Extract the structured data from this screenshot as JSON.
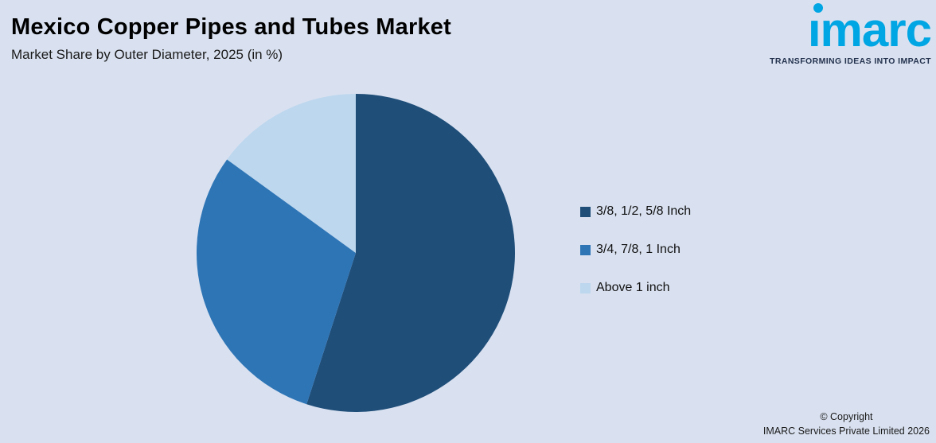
{
  "header": {
    "title": "Mexico Copper Pipes and Tubes Market",
    "subtitle": "Market Share by Outer Diameter, 2025 (in %)"
  },
  "logo": {
    "text": "imarc",
    "tagline": "TRANSFORMING IDEAS INTO IMPACT",
    "brand_color": "#00a5e3"
  },
  "chart_data": {
    "type": "pie",
    "title": "Mexico Copper Pipes and Tubes Market",
    "subtitle": "Market Share by Outer Diameter, 2025 (in %)",
    "labels": [
      "3/8, 1/2, 5/8 Inch",
      "3/4, 7/8, 1 Inch",
      "Above 1 inch"
    ],
    "values": [
      55,
      30,
      15
    ],
    "colors": [
      "#1f4e79",
      "#2e75b6",
      "#bdd7ee"
    ],
    "legend_position": "right",
    "start_angle_deg": 0,
    "direction": "clockwise"
  },
  "footer": {
    "line1": "© Copyright",
    "line2": "IMARC Services Private Limited 2026"
  }
}
